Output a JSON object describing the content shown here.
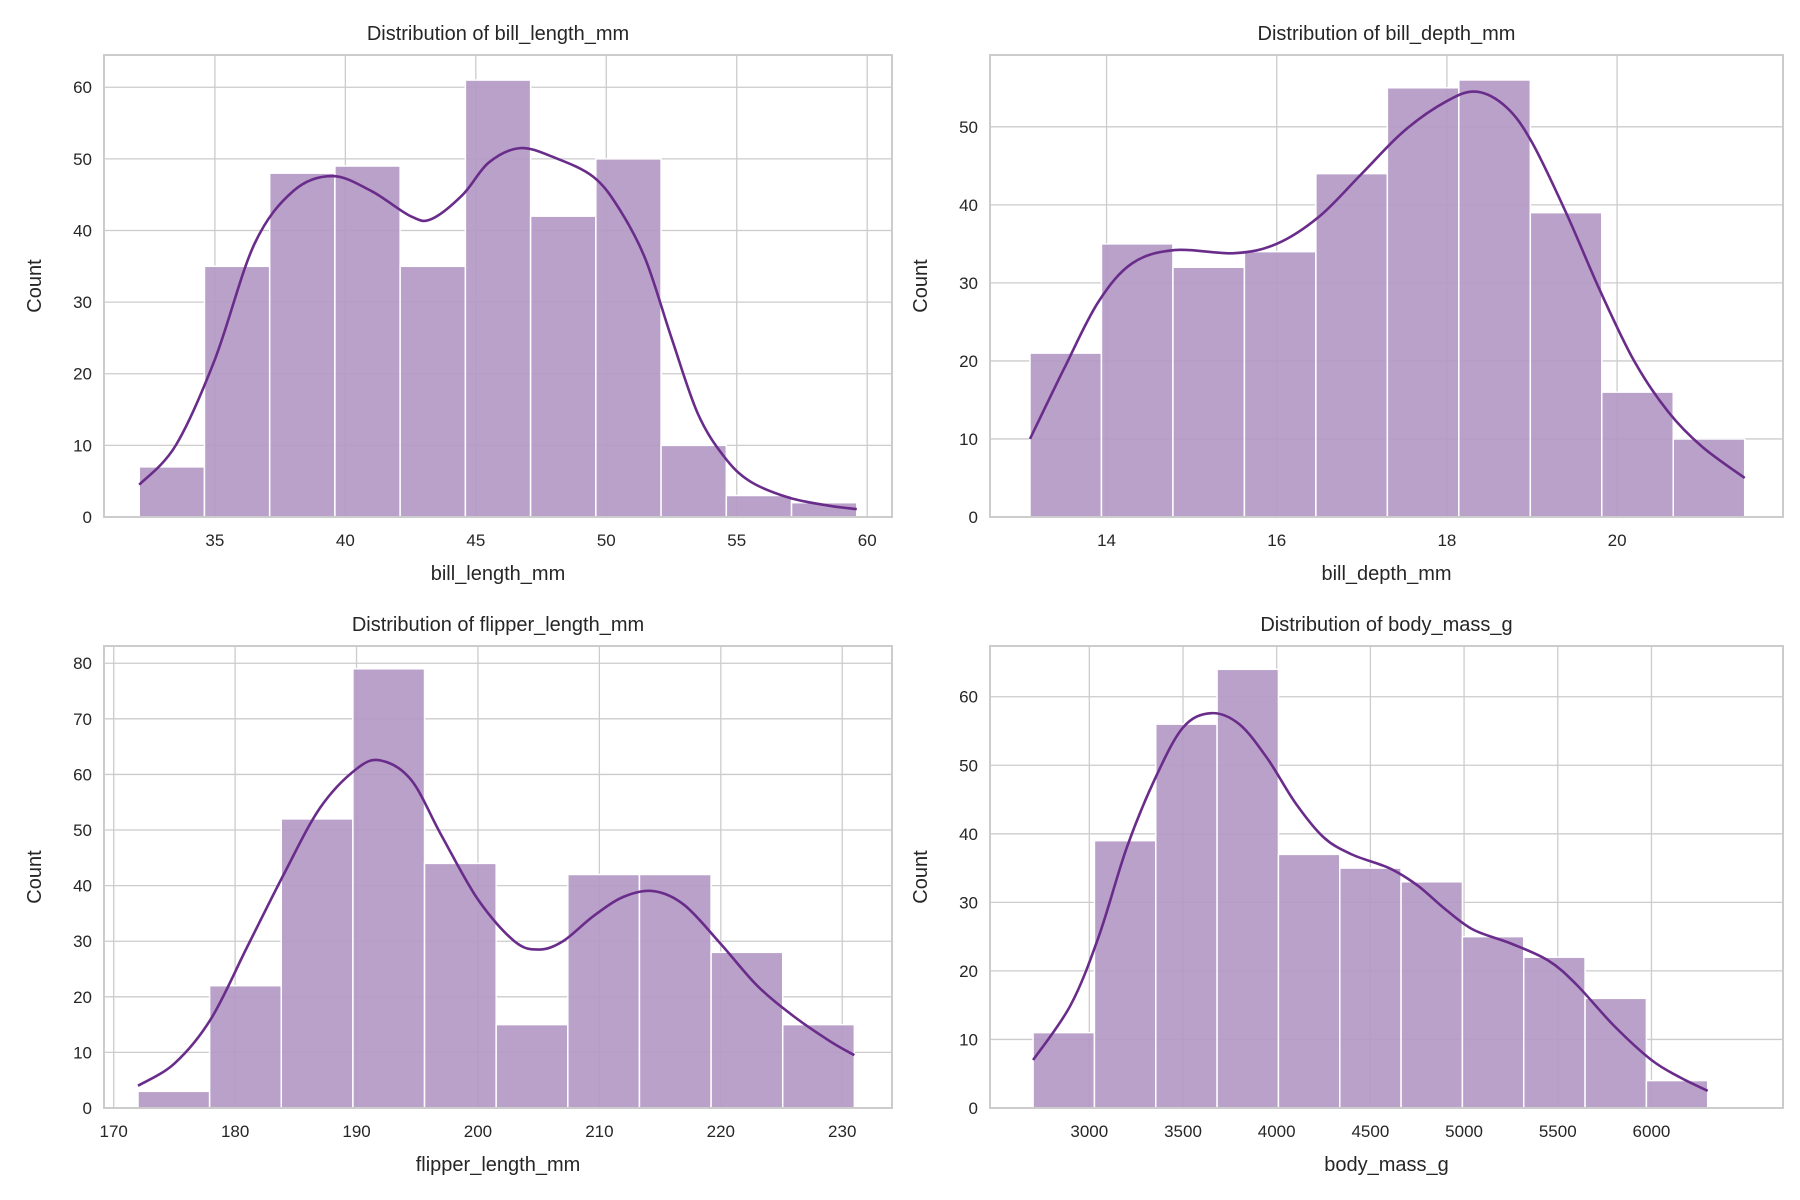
{
  "style": {
    "bar_color": "#b399c4",
    "bar_edge": "#ffffff",
    "kde_color": "#6a2c8a",
    "grid_color": "#cccccc",
    "background": "#ffffff"
  },
  "chart_data": [
    {
      "type": "bar",
      "title": "Distribution of bill_length_mm",
      "xlabel": "bill_length_mm",
      "ylabel": "Count",
      "xlim": [
        30.75,
        60.95
      ],
      "ylim": [
        0,
        64.5
      ],
      "xticks": [
        35,
        40,
        45,
        50,
        55,
        60
      ],
      "yticks": [
        0,
        10,
        20,
        30,
        40,
        50,
        60
      ],
      "bin_start": 32.1,
      "bin_width": 2.5,
      "values": [
        7,
        35,
        48,
        49,
        35,
        61,
        42,
        50,
        10,
        3,
        2
      ],
      "grid": true,
      "kde": [
        [
          32.1,
          4.5
        ],
        [
          33.5,
          10
        ],
        [
          35,
          22
        ],
        [
          36.5,
          38
        ],
        [
          38,
          45.5
        ],
        [
          39.5,
          47.6
        ],
        [
          41,
          45.5
        ],
        [
          42.5,
          42
        ],
        [
          43.3,
          41.6
        ],
        [
          44.5,
          45
        ],
        [
          45.5,
          49.5
        ],
        [
          46.7,
          51.5
        ],
        [
          48,
          50.2
        ],
        [
          49.5,
          47.5
        ],
        [
          50.5,
          43
        ],
        [
          51.5,
          36
        ],
        [
          52.5,
          25
        ],
        [
          53.5,
          14.5
        ],
        [
          54.5,
          8.5
        ],
        [
          55.5,
          5
        ],
        [
          57,
          2.7
        ],
        [
          58.5,
          1.6
        ],
        [
          59.6,
          1.1
        ]
      ]
    },
    {
      "type": "bar",
      "title": "Distribution of bill_depth_mm",
      "xlabel": "bill_depth_mm",
      "ylabel": "Count",
      "xlim": [
        12.63,
        21.95
      ],
      "ylim": [
        0,
        59.2
      ],
      "xticks": [
        14,
        16,
        18,
        20
      ],
      "yticks": [
        0,
        10,
        20,
        30,
        40,
        50
      ],
      "bin_start": 13.1,
      "bin_width": 0.84,
      "values": [
        21,
        35,
        32,
        34,
        44,
        55,
        56,
        39,
        16,
        10
      ],
      "grid": true,
      "kde": [
        [
          13.1,
          10
        ],
        [
          13.5,
          19
        ],
        [
          13.9,
          27.5
        ],
        [
          14.3,
          32.5
        ],
        [
          14.8,
          34.2
        ],
        [
          15.5,
          33.8
        ],
        [
          16,
          35
        ],
        [
          16.5,
          38.5
        ],
        [
          17,
          44
        ],
        [
          17.5,
          49.5
        ],
        [
          18,
          53.3
        ],
        [
          18.35,
          54.5
        ],
        [
          18.7,
          52.5
        ],
        [
          19,
          48
        ],
        [
          19.4,
          39
        ],
        [
          19.8,
          29
        ],
        [
          20.2,
          20
        ],
        [
          20.6,
          13.5
        ],
        [
          21,
          9
        ],
        [
          21.5,
          5
        ]
      ]
    },
    {
      "type": "bar",
      "title": "Distribution of flipper_length_mm",
      "xlabel": "flipper_length_mm",
      "ylabel": "Count",
      "xlim": [
        169.2,
        234.1
      ],
      "ylim": [
        0,
        83.1
      ],
      "xticks": [
        170,
        180,
        190,
        200,
        210,
        220,
        230
      ],
      "yticks": [
        0,
        10,
        20,
        30,
        40,
        50,
        60,
        70,
        80
      ],
      "bin_start": 172,
      "bin_width": 5.9,
      "values": [
        3,
        22,
        52,
        79,
        44,
        15,
        42,
        42,
        28,
        15
      ],
      "grid": true,
      "kde": [
        [
          172,
          4
        ],
        [
          175,
          8
        ],
        [
          178,
          16
        ],
        [
          181,
          29
        ],
        [
          184,
          42
        ],
        [
          187,
          54
        ],
        [
          190,
          61
        ],
        [
          192,
          62.5
        ],
        [
          194.5,
          59
        ],
        [
          197,
          49
        ],
        [
          200,
          37.5
        ],
        [
          203,
          30
        ],
        [
          205,
          28.5
        ],
        [
          207,
          30
        ],
        [
          209.5,
          34.5
        ],
        [
          212,
          38
        ],
        [
          214.5,
          39
        ],
        [
          217,
          36.5
        ],
        [
          220,
          29.5
        ],
        [
          223,
          22
        ],
        [
          226,
          16.5
        ],
        [
          229,
          12
        ],
        [
          231,
          9.5
        ]
      ]
    },
    {
      "type": "bar",
      "title": "Distribution of body_mass_g",
      "xlabel": "body_mass_g",
      "ylabel": "Count",
      "xlim": [
        2470,
        6702
      ],
      "ylim": [
        0,
        67.4
      ],
      "xticks": [
        3000,
        3500,
        4000,
        4500,
        5000,
        5500,
        6000
      ],
      "yticks": [
        0,
        10,
        20,
        30,
        40,
        50,
        60
      ],
      "bin_start": 2700,
      "bin_width": 327.3,
      "values": [
        11,
        39,
        56,
        64,
        37,
        35,
        33,
        25,
        22,
        16,
        4
      ],
      "grid": true,
      "kde": [
        [
          2700,
          7
        ],
        [
          2900,
          15
        ],
        [
          3050,
          25
        ],
        [
          3200,
          38
        ],
        [
          3350,
          48
        ],
        [
          3500,
          55.5
        ],
        [
          3650,
          57.6
        ],
        [
          3800,
          56
        ],
        [
          3950,
          51
        ],
        [
          4100,
          44.5
        ],
        [
          4250,
          39.5
        ],
        [
          4400,
          37
        ],
        [
          4600,
          35
        ],
        [
          4750,
          32.5
        ],
        [
          4900,
          29
        ],
        [
          5050,
          26
        ],
        [
          5250,
          24
        ],
        [
          5450,
          21.5
        ],
        [
          5600,
          18
        ],
        [
          5800,
          12
        ],
        [
          6000,
          7
        ],
        [
          6150,
          4.5
        ],
        [
          6300,
          2.5
        ]
      ]
    }
  ]
}
